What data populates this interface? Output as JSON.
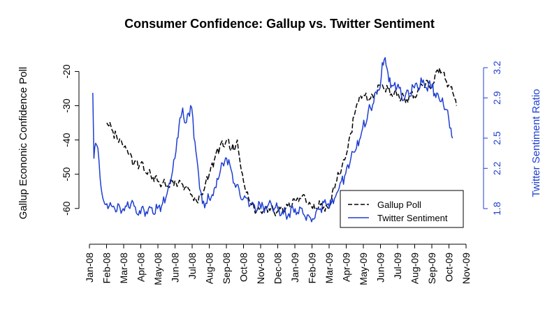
{
  "chart_data": {
    "type": "line",
    "title": "Consumer Confidence: Gallup vs. Twitter Sentiment",
    "x_axis": {
      "tick_labels": [
        "Jan-08",
        "Feb-08",
        "Mar-08",
        "Apr-08",
        "May-08",
        "Jun-08",
        "Jul-08",
        "Aug-08",
        "Sep-08",
        "Oct-08",
        "Nov-08",
        "Dec-08",
        "Jan-09",
        "Feb-09",
        "Mar-09",
        "Apr-09",
        "May-09",
        "Jun-09",
        "Jul-09",
        "Aug-09",
        "Sep-09",
        "Oct-09",
        "Nov-09"
      ],
      "range": [
        "2008-01-01",
        "2009-11-01"
      ]
    },
    "y_left": {
      "label": "Gallup Econonic Confidence Poll",
      "ticks": [
        -60,
        -50,
        -40,
        -30,
        -20
      ],
      "range": [
        -68,
        -14
      ]
    },
    "y_right": {
      "label": "Twitter Sentiment Ratio",
      "ticks": [
        1.8,
        2.2,
        2.5,
        2.9,
        3.2
      ],
      "tick_labels": [
        "1.8",
        "2.2",
        "2.5",
        "2.9",
        "3.2"
      ],
      "range": [
        1.8,
        3.2
      ],
      "color": "#1f3fd1"
    },
    "legend": {
      "placement": "bottom-right",
      "entries": [
        "Gallup Poll",
        "Twitter Sentiment"
      ]
    },
    "series": [
      {
        "name": "Gallup Poll",
        "axis": "left",
        "color": "#000000",
        "dash": "dashed",
        "x": [
          "2008-02-01",
          "2008-02-10",
          "2008-02-20",
          "2008-03-01",
          "2008-03-10",
          "2008-03-20",
          "2008-04-01",
          "2008-04-15",
          "2008-05-01",
          "2008-05-15",
          "2008-06-01",
          "2008-06-15",
          "2008-07-01",
          "2008-07-10",
          "2008-07-20",
          "2008-08-01",
          "2008-08-10",
          "2008-08-20",
          "2008-09-01",
          "2008-09-10",
          "2008-09-20",
          "2008-10-01",
          "2008-10-10",
          "2008-10-20",
          "2008-11-01",
          "2008-11-15",
          "2008-12-01",
          "2008-12-15",
          "2009-01-01",
          "2009-01-15",
          "2009-02-01",
          "2009-02-15",
          "2009-03-01",
          "2009-03-10",
          "2009-03-20",
          "2009-04-01",
          "2009-04-10",
          "2009-04-20",
          "2009-05-01",
          "2009-05-15",
          "2009-06-01",
          "2009-06-15",
          "2009-07-01",
          "2009-07-15",
          "2009-08-01",
          "2009-08-15",
          "2009-09-01",
          "2009-09-15",
          "2009-10-01",
          "2009-10-10",
          "2009-10-15"
        ],
        "y": [
          -35,
          -37,
          -40,
          -42,
          -44,
          -47,
          -47,
          -49,
          -52,
          -53,
          -52,
          -53,
          -56,
          -58,
          -56,
          -50,
          -46,
          -42,
          -40,
          -43,
          -40,
          -52,
          -57,
          -60,
          -61,
          -60,
          -61,
          -60,
          -58,
          -56,
          -60,
          -59,
          -60,
          -54,
          -50,
          -45,
          -38,
          -30,
          -27,
          -28,
          -24,
          -25,
          -27,
          -28,
          -27,
          -24,
          -24,
          -19,
          -24,
          -27,
          -30
        ]
      },
      {
        "name": "Twitter Sentiment",
        "axis": "right",
        "color": "#1f3fd1",
        "dash": "solid",
        "x": [
          "2008-01-07",
          "2008-01-09",
          "2008-01-12",
          "2008-01-16",
          "2008-01-20",
          "2008-01-25",
          "2008-02-01",
          "2008-02-15",
          "2008-03-01",
          "2008-03-15",
          "2008-04-01",
          "2008-04-15",
          "2008-05-01",
          "2008-05-10",
          "2008-05-20",
          "2008-06-01",
          "2008-06-05",
          "2008-06-10",
          "2008-06-15",
          "2008-06-20",
          "2008-06-25",
          "2008-07-01",
          "2008-07-05",
          "2008-07-10",
          "2008-07-15",
          "2008-07-20",
          "2008-08-01",
          "2008-08-10",
          "2008-08-15",
          "2008-08-25",
          "2008-09-01",
          "2008-09-15",
          "2008-10-01",
          "2008-10-15",
          "2008-11-01",
          "2008-11-15",
          "2008-12-01",
          "2008-12-15",
          "2009-01-01",
          "2009-01-15",
          "2009-02-01",
          "2009-02-15",
          "2009-03-01",
          "2009-03-10",
          "2009-03-20",
          "2009-04-01",
          "2009-04-10",
          "2009-04-20",
          "2009-05-01",
          "2009-05-15",
          "2009-06-01",
          "2009-06-05",
          "2009-06-10",
          "2009-06-15",
          "2009-06-20",
          "2009-07-01",
          "2009-07-15",
          "2009-08-01",
          "2009-08-15",
          "2009-09-01",
          "2009-09-10",
          "2009-09-20",
          "2009-10-01",
          "2009-10-05",
          "2009-10-08"
        ],
        "y": [
          2.95,
          2.3,
          2.45,
          2.4,
          2.1,
          1.9,
          1.85,
          1.8,
          1.8,
          1.85,
          1.75,
          1.8,
          1.8,
          1.85,
          2.0,
          2.3,
          2.5,
          2.7,
          2.8,
          2.65,
          2.75,
          2.8,
          2.5,
          2.3,
          2.0,
          1.85,
          1.9,
          2.0,
          2.1,
          2.25,
          2.3,
          2.05,
          1.9,
          1.85,
          1.8,
          1.85,
          1.8,
          1.75,
          1.8,
          1.75,
          1.7,
          1.8,
          1.85,
          1.85,
          2.0,
          2.15,
          2.3,
          2.4,
          2.6,
          2.8,
          3.0,
          3.25,
          3.3,
          3.15,
          3.0,
          3.0,
          2.9,
          3.0,
          3.05,
          3.0,
          2.95,
          2.9,
          2.7,
          2.6,
          2.5
        ]
      }
    ]
  }
}
